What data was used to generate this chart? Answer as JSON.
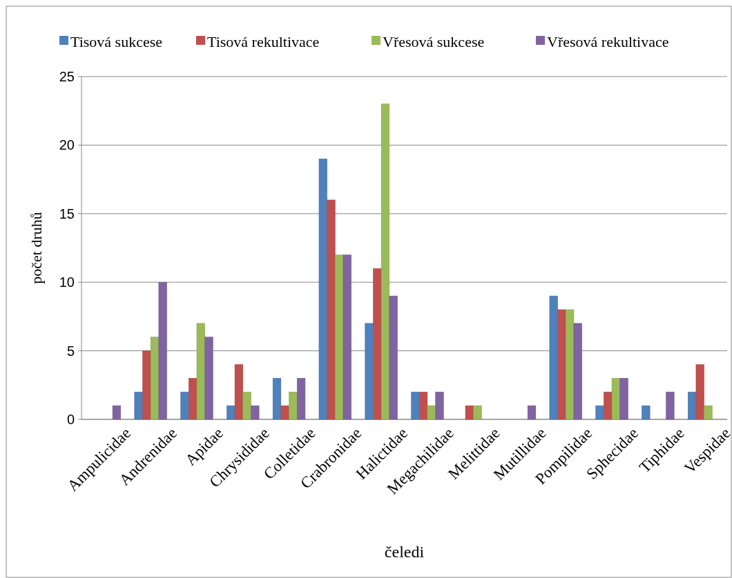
{
  "chart_data": {
    "type": "bar",
    "categories": [
      "Ampulicidae",
      "Andrenidae",
      "Apidae",
      "Chrysididae",
      "Colletidae",
      "Crabronidae",
      "Halictidae",
      "Megachilidae",
      "Melittidae",
      "Mutillidae",
      "Pompilidae",
      "Sphecidae",
      "Tiphidae",
      "Vespidae"
    ],
    "series": [
      {
        "name": "Tisová sukcese",
        "color": "#4f81bd",
        "values": [
          0,
          2,
          2,
          1,
          3,
          19,
          7,
          2,
          0,
          0,
          9,
          1,
          1,
          2
        ]
      },
      {
        "name": "Tisová rekultivace",
        "color": "#c0504d",
        "values": [
          0,
          5,
          3,
          4,
          1,
          16,
          11,
          2,
          1,
          0,
          8,
          2,
          0,
          4
        ]
      },
      {
        "name": "Vřesová sukcese",
        "color": "#9bbb59",
        "values": [
          0,
          6,
          7,
          2,
          2,
          12,
          23,
          1,
          1,
          0,
          8,
          3,
          0,
          1
        ]
      },
      {
        "name": "Vřesová rekultivace",
        "color": "#8064a2",
        "values": [
          1,
          10,
          6,
          1,
          3,
          12,
          9,
          2,
          0,
          1,
          7,
          3,
          2,
          0
        ]
      }
    ],
    "xlabel": "čeledi",
    "ylabel": "počet druhů",
    "ylim": [
      0,
      25
    ],
    "yticks": [
      0,
      5,
      10,
      15,
      20,
      25
    ],
    "grid": "y",
    "legend": "top"
  }
}
